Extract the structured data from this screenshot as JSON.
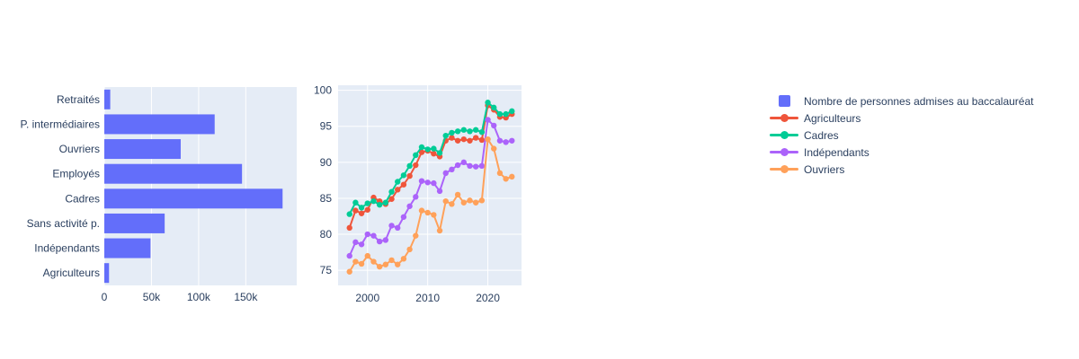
{
  "figure": {
    "background": "#FFFFFF",
    "plot_background": "#E5ECF6",
    "grid_color": "#FFFFFF",
    "text_color": "#2A3F5F",
    "accent": "#636EFA"
  },
  "legend": {
    "items": [
      {
        "label": "Nombre de personnes admises au baccalauréat",
        "marker": "square",
        "color": "#636EFA"
      },
      {
        "label": "Agriculteurs",
        "marker": "line-dot",
        "color": "#EF553B"
      },
      {
        "label": "Cadres",
        "marker": "line-dot",
        "color": "#00CC96"
      },
      {
        "label": "Indépendants",
        "marker": "line-dot",
        "color": "#AB63FA"
      },
      {
        "label": "Ouvriers",
        "marker": "line-dot",
        "color": "#FFA15A"
      }
    ]
  },
  "chart_data": [
    {
      "type": "bar",
      "orientation": "horizontal",
      "name": "Nombre de personnes admises au baccalauréat",
      "categories_top_to_bottom": [
        "Retraités",
        "P. intermédiaires",
        "Ouvriers",
        "Employés",
        "Cadres",
        "Sans activité p.",
        "Indépendants",
        "Agriculteurs"
      ],
      "values": [
        6300,
        117000,
        81000,
        146000,
        189000,
        64000,
        49000,
        5000
      ],
      "x_ticks": [
        "0",
        "50k",
        "100k",
        "150k"
      ],
      "x_tick_values": [
        0,
        50000,
        100000,
        150000
      ],
      "xlim": [
        0,
        204000
      ],
      "bar_color": "#636EFA",
      "grid": true
    },
    {
      "type": "line",
      "x": [
        1997,
        1998,
        1999,
        2000,
        2001,
        2002,
        2003,
        2004,
        2005,
        2006,
        2007,
        2008,
        2009,
        2010,
        2011,
        2012,
        2013,
        2014,
        2015,
        2016,
        2017,
        2018,
        2019,
        2020,
        2021,
        2022,
        2023,
        2024
      ],
      "x_ticks": [
        "2000",
        "2010",
        "2020"
      ],
      "x_tick_values": [
        2000,
        2010,
        2020
      ],
      "y_ticks": [
        "75",
        "80",
        "85",
        "90",
        "95",
        "100"
      ],
      "y_tick_values": [
        75,
        80,
        85,
        90,
        95,
        100
      ],
      "xlim": [
        1995.1,
        2025.6
      ],
      "ylim": [
        72.9,
        100.7
      ],
      "grid": true,
      "series": [
        {
          "name": "Agriculteurs",
          "color": "#EF553B",
          "values": [
            80.9,
            83.3,
            82.9,
            83.4,
            85.1,
            84.6,
            84.2,
            84.9,
            86.2,
            86.9,
            88.1,
            89.6,
            91.4,
            91.6,
            91.2,
            90.8,
            93.0,
            93.4,
            93.0,
            93.2,
            93.0,
            93.4,
            93.1,
            97.9,
            97.3,
            96.3,
            96.2,
            96.7
          ]
        },
        {
          "name": "Cadres",
          "color": "#00CC96",
          "values": [
            82.8,
            84.4,
            83.7,
            84.3,
            84.6,
            84.1,
            84.4,
            85.9,
            87.3,
            88.2,
            89.5,
            91.0,
            92.1,
            91.8,
            91.9,
            91.3,
            93.7,
            94.1,
            94.3,
            94.5,
            94.3,
            94.5,
            94.2,
            98.3,
            97.6,
            96.7,
            96.7,
            97.1
          ]
        },
        {
          "name": "Indépendants",
          "color": "#AB63FA",
          "values": [
            77.0,
            78.9,
            78.6,
            80.0,
            79.8,
            79.0,
            79.2,
            81.2,
            80.9,
            82.4,
            83.9,
            85.2,
            87.4,
            87.2,
            87.1,
            86.0,
            88.5,
            89.0,
            89.6,
            90.0,
            89.5,
            89.4,
            89.5,
            95.9,
            95.1,
            93.0,
            92.8,
            93.0
          ]
        },
        {
          "name": "Ouvriers",
          "color": "#FFA15A",
          "values": [
            74.8,
            76.2,
            75.9,
            77.0,
            76.2,
            75.5,
            75.8,
            76.4,
            75.8,
            76.6,
            77.9,
            79.8,
            83.3,
            83.0,
            82.7,
            80.5,
            84.6,
            84.2,
            85.5,
            84.4,
            84.7,
            84.4,
            84.7,
            93.2,
            91.9,
            88.5,
            87.7,
            88.0
          ]
        }
      ]
    }
  ]
}
